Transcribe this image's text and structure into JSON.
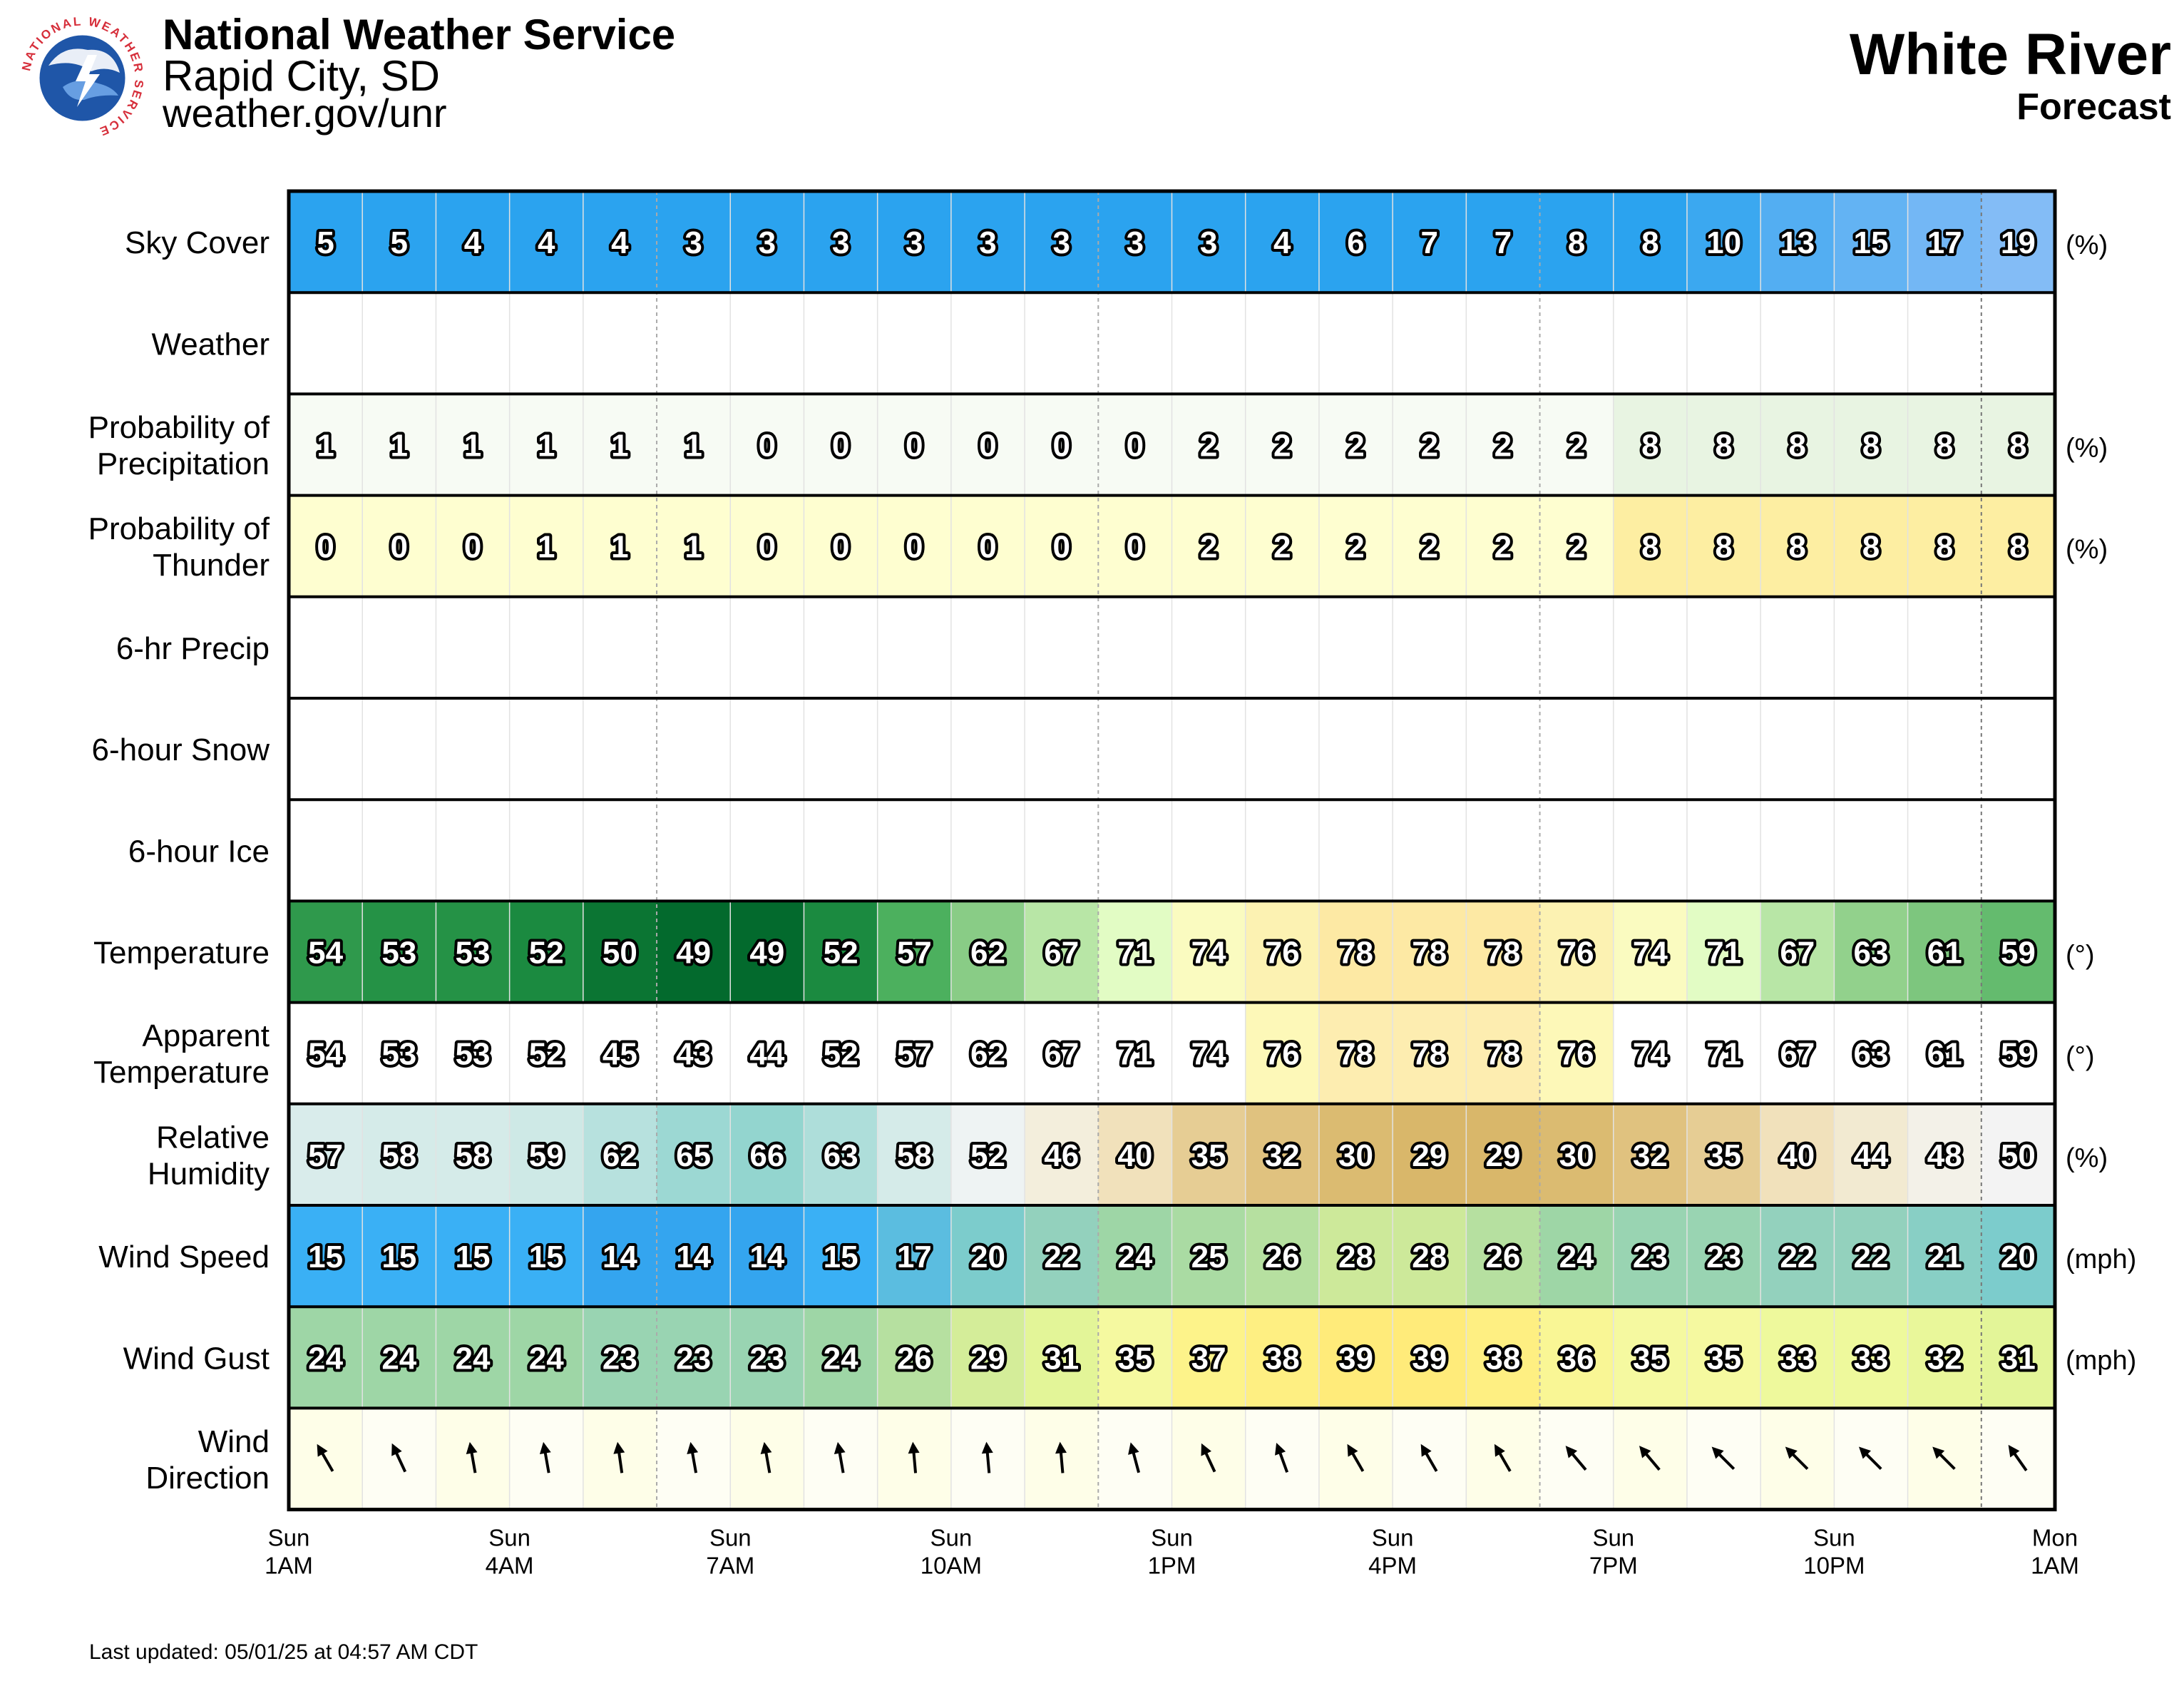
{
  "header": {
    "title": "National Weather Service",
    "office": "Rapid City, SD",
    "url": "weather.gov/unr",
    "location": "White River",
    "subtitle": "Forecast",
    "logo_icon": "nws-logo-icon",
    "logo_text": "NATIONAL WEATHER SERVICE"
  },
  "footer": {
    "last_updated": "Last updated: 05/01/25 at 04:57 AM CDT"
  },
  "chart_data": {
    "type": "table",
    "hours": 24,
    "x_ticks": [
      {
        "day": "Sun",
        "time": "1AM",
        "hour_index": 0
      },
      {
        "day": "Sun",
        "time": "4AM",
        "hour_index": 3
      },
      {
        "day": "Sun",
        "time": "7AM",
        "hour_index": 6
      },
      {
        "day": "Sun",
        "time": "10AM",
        "hour_index": 9
      },
      {
        "day": "Sun",
        "time": "1PM",
        "hour_index": 12
      },
      {
        "day": "Sun",
        "time": "4PM",
        "hour_index": 15
      },
      {
        "day": "Sun",
        "time": "7PM",
        "hour_index": 18
      },
      {
        "day": "Sun",
        "time": "10PM",
        "hour_index": 21
      },
      {
        "day": "Mon",
        "time": "1AM",
        "hour_index": 24
      }
    ],
    "day_divider_hour": 23,
    "rows": [
      {
        "key": "sky",
        "label": [
          "Sky Cover"
        ],
        "unit": "(%)",
        "palette": "sky",
        "colors": [
          "#2ba3ef",
          "#83bcf6"
        ],
        "values": [
          5,
          5,
          4,
          4,
          4,
          3,
          3,
          3,
          3,
          3,
          3,
          3,
          3,
          4,
          6,
          7,
          7,
          8,
          8,
          10,
          13,
          15,
          17,
          19
        ]
      },
      {
        "key": "weather",
        "label": [
          "Weather"
        ],
        "unit": "",
        "palette": "none",
        "values": []
      },
      {
        "key": "pop",
        "label": [
          "Probability of",
          "Precipitation"
        ],
        "unit": "(%)",
        "palette": "pop",
        "colors": [
          "#f7fbf4",
          "#e8f4e2"
        ],
        "values": [
          1,
          1,
          1,
          1,
          1,
          1,
          0,
          0,
          0,
          0,
          0,
          0,
          2,
          2,
          2,
          2,
          2,
          2,
          8,
          8,
          8,
          8,
          8,
          8
        ]
      },
      {
        "key": "thunder",
        "label": [
          "Probability of",
          "Thunder"
        ],
        "unit": "(%)",
        "palette": "thunder",
        "colors": [
          "#fefed0",
          "#fdeea2"
        ],
        "values": [
          0,
          0,
          0,
          1,
          1,
          1,
          0,
          0,
          0,
          0,
          0,
          0,
          2,
          2,
          2,
          2,
          2,
          2,
          8,
          8,
          8,
          8,
          8,
          8
        ]
      },
      {
        "key": "precip6",
        "label": [
          "6-hr Precip"
        ],
        "unit": "",
        "palette": "none",
        "values": []
      },
      {
        "key": "snow6",
        "label": [
          "6-hour Snow"
        ],
        "unit": "",
        "palette": "none",
        "values": []
      },
      {
        "key": "ice6",
        "label": [
          "6-hour Ice"
        ],
        "unit": "",
        "palette": "none",
        "values": []
      },
      {
        "key": "temp",
        "label": [
          "Temperature"
        ],
        "unit": "(°)",
        "palette": "temp",
        "values": [
          54,
          53,
          53,
          52,
          50,
          49,
          49,
          52,
          57,
          62,
          67,
          71,
          74,
          76,
          78,
          78,
          78,
          76,
          74,
          71,
          67,
          63,
          61,
          59
        ]
      },
      {
        "key": "apparent",
        "label": [
          "Apparent",
          "Temperature"
        ],
        "unit": "(°)",
        "palette": "apparent",
        "values": [
          54,
          53,
          53,
          52,
          45,
          43,
          44,
          52,
          57,
          62,
          67,
          71,
          74,
          76,
          78,
          78,
          78,
          76,
          74,
          71,
          67,
          63,
          61,
          59
        ]
      },
      {
        "key": "rh",
        "label": [
          "Relative",
          "Humidity"
        ],
        "unit": "(%)",
        "palette": "rh",
        "values": [
          57,
          58,
          58,
          59,
          62,
          65,
          66,
          63,
          58,
          52,
          46,
          40,
          35,
          32,
          30,
          29,
          29,
          30,
          32,
          35,
          40,
          44,
          48,
          50
        ]
      },
      {
        "key": "wind",
        "label": [
          "Wind Speed"
        ],
        "unit": "(mph)",
        "palette": "wind",
        "values": [
          15,
          15,
          15,
          15,
          14,
          14,
          14,
          15,
          17,
          20,
          22,
          24,
          25,
          26,
          28,
          28,
          26,
          24,
          23,
          23,
          22,
          22,
          21,
          20
        ]
      },
      {
        "key": "gust",
        "label": [
          "Wind Gust"
        ],
        "unit": "(mph)",
        "palette": "wind",
        "values": [
          24,
          24,
          24,
          24,
          23,
          23,
          23,
          24,
          26,
          29,
          31,
          35,
          37,
          38,
          39,
          39,
          38,
          36,
          35,
          35,
          33,
          33,
          32,
          31
        ]
      },
      {
        "key": "winddir",
        "label": [
          "Wind",
          "Direction"
        ],
        "unit": "",
        "palette": "winddir",
        "colors": [
          "#fefee8",
          "#fefef4"
        ],
        "values": [
          150,
          155,
          170,
          170,
          172,
          170,
          170,
          170,
          175,
          175,
          175,
          165,
          155,
          160,
          150,
          150,
          150,
          140,
          140,
          135,
          135,
          135,
          135,
          145
        ]
      }
    ]
  }
}
